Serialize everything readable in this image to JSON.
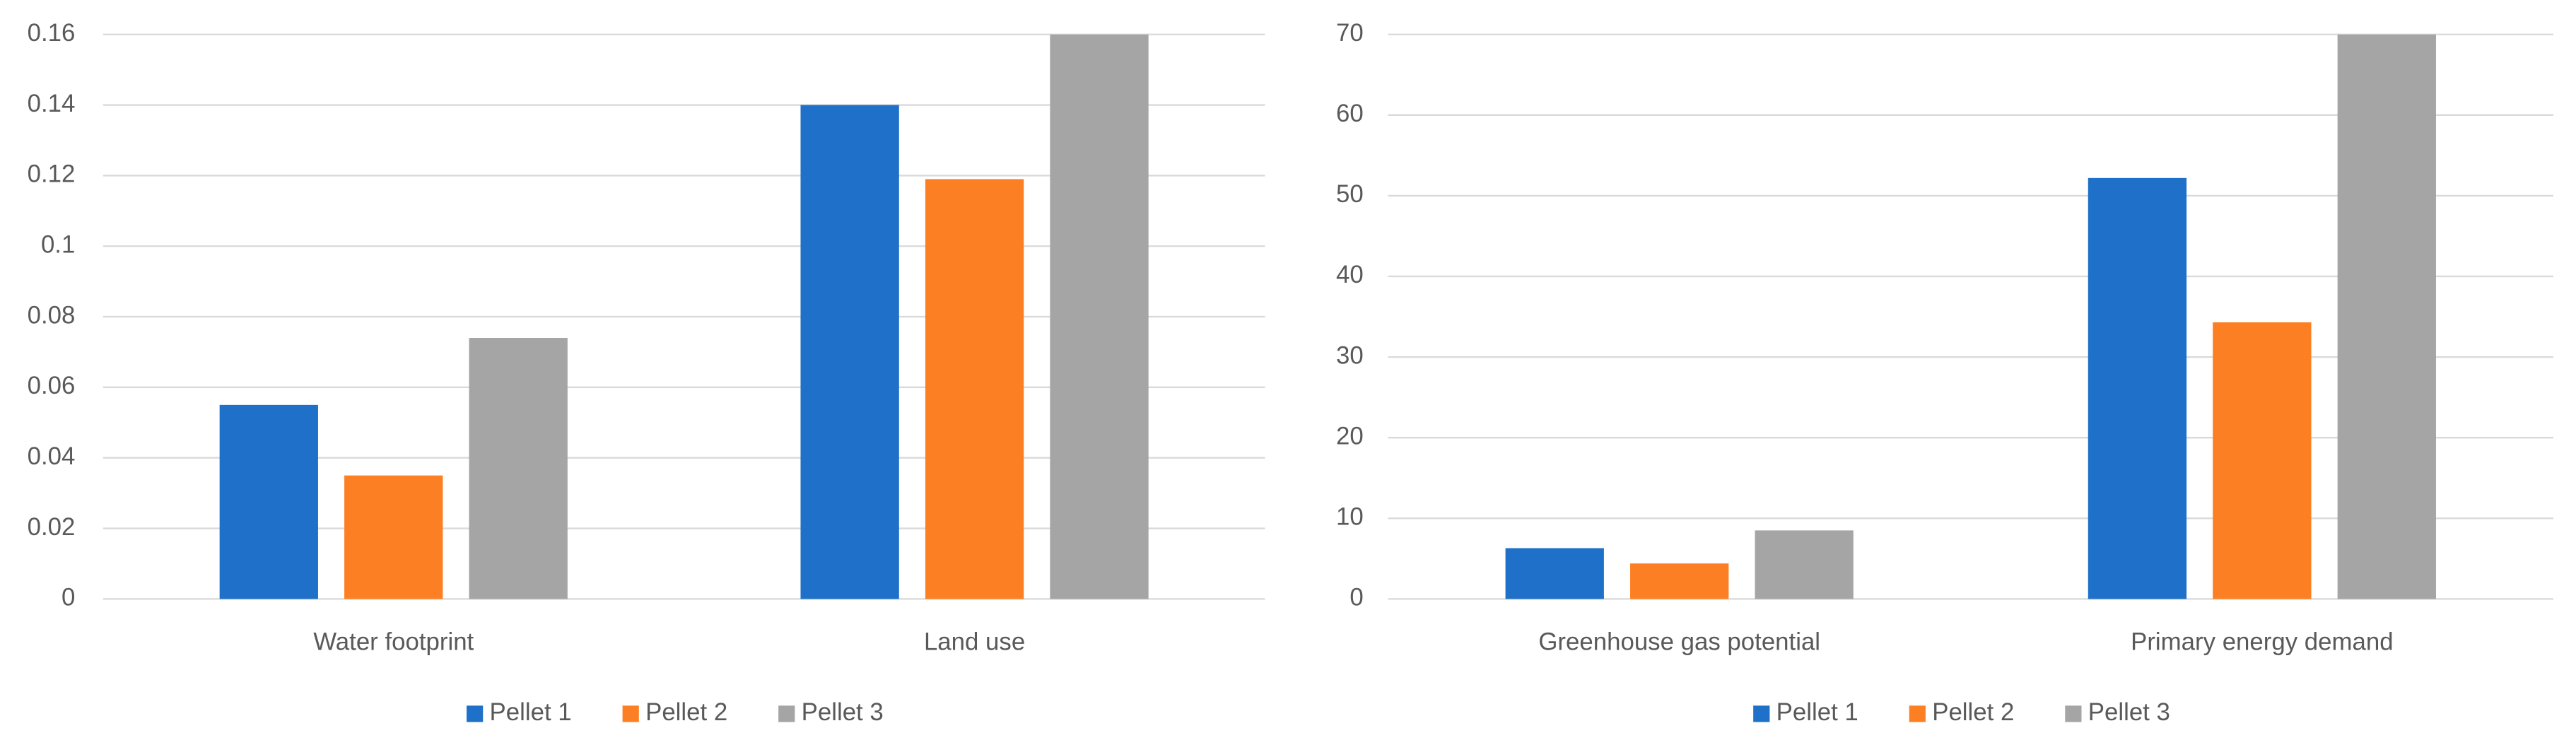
{
  "chart_data": [
    {
      "type": "bar",
      "categories": [
        "Water footprint",
        "Land use"
      ],
      "series": [
        {
          "name": "Pellet 1",
          "color": "#1f70c8",
          "values": [
            0.055,
            0.14
          ]
        },
        {
          "name": "Pellet 2",
          "color": "#fd7f23",
          "values": [
            0.035,
            0.119
          ]
        },
        {
          "name": "Pellet 3",
          "color": "#a5a5a5",
          "values": [
            0.074,
            0.16
          ]
        }
      ],
      "ylim": [
        0,
        0.16
      ],
      "yticks": [
        0,
        0.02,
        0.04,
        0.06,
        0.08,
        0.1,
        0.12,
        0.14,
        0.16
      ],
      "grid": true,
      "legend": "bottom"
    },
    {
      "type": "bar",
      "categories": [
        "Greenhouse gas potential",
        "Primary energy demand"
      ],
      "series": [
        {
          "name": "Pellet 1",
          "color": "#1f70c8",
          "values": [
            6.3,
            52.2
          ]
        },
        {
          "name": "Pellet 2",
          "color": "#fd7f23",
          "values": [
            4.4,
            34.3
          ]
        },
        {
          "name": "Pellet 3",
          "color": "#a5a5a5",
          "values": [
            8.5,
            70
          ]
        }
      ],
      "ylim": [
        0,
        70
      ],
      "yticks": [
        0,
        10,
        20,
        30,
        40,
        50,
        60,
        70
      ],
      "grid": true,
      "legend": "bottom"
    }
  ]
}
